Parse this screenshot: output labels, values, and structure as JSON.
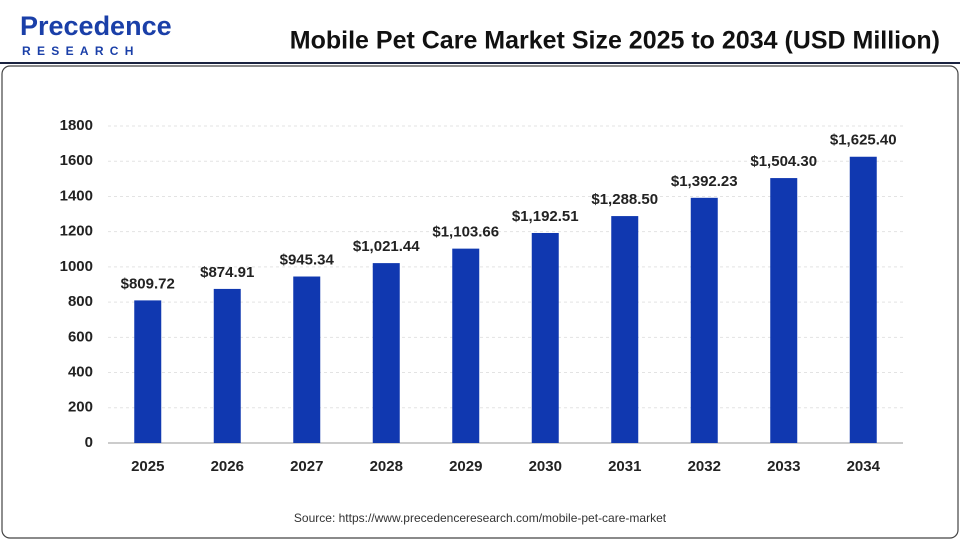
{
  "chart_data": {
    "type": "bar",
    "title": "Mobile Pet Care Market Size 2025 to 2034 (USD Million)",
    "logo": {
      "name": "Precedence",
      "tagline": "RESEARCH"
    },
    "source": "Source: https://www.precedenceresearch.com/mobile-pet-care-market",
    "categories": [
      "2025",
      "2026",
      "2027",
      "2028",
      "2029",
      "2030",
      "2031",
      "2032",
      "2033",
      "2034"
    ],
    "values": [
      809.72,
      874.91,
      945.34,
      1021.44,
      1103.66,
      1192.51,
      1288.5,
      1392.23,
      1504.3,
      1625.4
    ],
    "value_labels": [
      "$809.72",
      "$874.91",
      "$945.34",
      "$1,021.44",
      "$1,103.66",
      "$1,192.51",
      "$1,288.50",
      "$1,392.23",
      "$1,504.30",
      "$1,625.40"
    ],
    "color": "#1038b0",
    "ylim": [
      0,
      1800
    ],
    "yticks": [
      0,
      200,
      400,
      600,
      800,
      1000,
      1200,
      1400,
      1600,
      1800
    ],
    "grid": true
  }
}
